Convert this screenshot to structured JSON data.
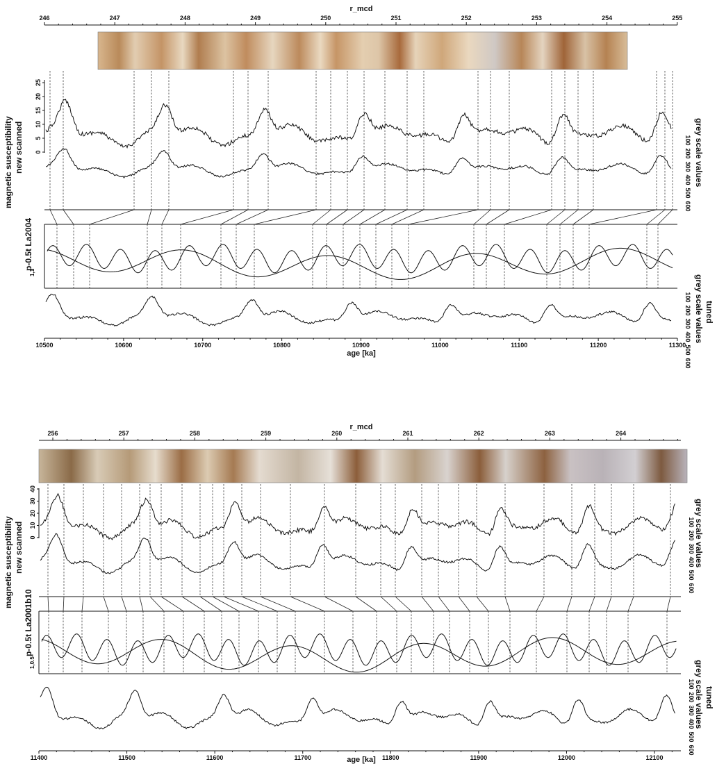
{
  "chart_data": [
    {
      "type": "line",
      "panel": "upper",
      "top_axis": {
        "label": "r_mcd",
        "ticks": [
          "246",
          "247",
          "248",
          "249",
          "250",
          "251",
          "252",
          "253",
          "254",
          "255"
        ]
      },
      "bottom_axis": {
        "label": "age [ka]",
        "ticks": [
          "10500",
          "10600",
          "10700",
          "10800",
          "10900",
          "11000",
          "11100",
          "11200",
          "11300"
        ],
        "range": [
          10500,
          11300
        ]
      },
      "y_labels": {
        "susceptibility": [
          "magnetic susceptibility",
          "new scanned"
        ],
        "grey": [
          "grey scale values"
        ],
        "eccentricity": [
          "p-0.5t La2004",
          "1,1"
        ],
        "grey_tuned": [
          "grey scale values",
          "tuned"
        ]
      },
      "susceptibility_ticks": [
        "0",
        "5",
        "10",
        "15",
        "20",
        "25"
      ],
      "grey_ticks": [
        "100",
        "200",
        "300",
        "400",
        "500",
        "600"
      ],
      "series": [
        {
          "name": "magnetic susceptibility new scanned"
        },
        {
          "name": "grey scale values"
        },
        {
          "name": "p-0.5t La2004"
        },
        {
          "name": "grey scale values tuned"
        }
      ]
    },
    {
      "type": "line",
      "panel": "lower",
      "top_axis": {
        "label": "r_mcd",
        "ticks": [
          "256",
          "257",
          "258",
          "259",
          "260",
          "261",
          "262",
          "263",
          "264"
        ]
      },
      "bottom_axis": {
        "label": "age [ka]",
        "ticks": [
          "11400",
          "11500",
          "11600",
          "11700",
          "11800",
          "11900",
          "12000",
          "12100"
        ],
        "range": [
          11400,
          12130
        ]
      },
      "y_labels": {
        "susceptibility": [
          "magnetic susceptibility",
          "new scanned"
        ],
        "grey": [
          "grey scale values"
        ],
        "eccentricity": [
          "p-0.5t La2001b10",
          "1,0.5"
        ],
        "grey_tuned": [
          "grey scale values",
          "tuned"
        ]
      },
      "susceptibility_ticks": [
        "0",
        "10",
        "20",
        "30",
        "40"
      ],
      "grey_ticks": [
        "100",
        "200",
        "300",
        "400",
        "500",
        "600"
      ],
      "series": [
        {
          "name": "magnetic susceptibility new scanned"
        },
        {
          "name": "grey scale values"
        },
        {
          "name": "p-0.5t La2001b10"
        },
        {
          "name": "grey scale values tuned"
        }
      ]
    }
  ]
}
